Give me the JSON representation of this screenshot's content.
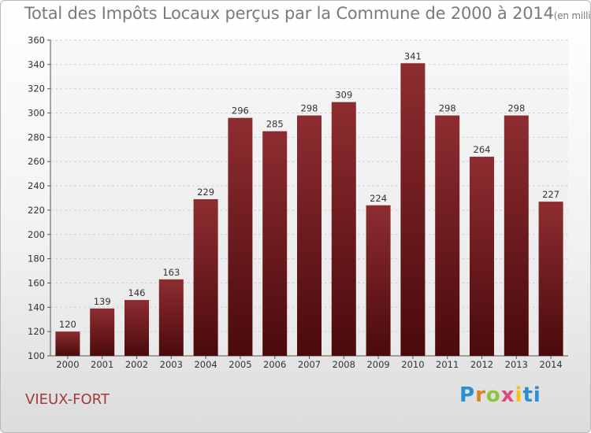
{
  "chart_data": {
    "type": "bar",
    "title": "Total des Impôts Locaux perçus par la Commune de 2000 à 2014",
    "unit_label": "(en milliers d'€)",
    "categories": [
      "2000",
      "2001",
      "2002",
      "2003",
      "2004",
      "2005",
      "2006",
      "2007",
      "2008",
      "2009",
      "2010",
      "2011",
      "2012",
      "2013",
      "2014"
    ],
    "values": [
      120,
      139,
      146,
      163,
      229,
      296,
      285,
      298,
      309,
      224,
      341,
      298,
      264,
      298,
      227
    ],
    "ylim": [
      100,
      360
    ],
    "yticks": [
      100,
      120,
      140,
      160,
      180,
      200,
      220,
      240,
      260,
      280,
      300,
      320,
      340,
      360
    ],
    "xlabel": "",
    "ylabel": "",
    "grid": true,
    "bar_color": "#7a1f24"
  },
  "commune": "VIEUX-FORT",
  "brand": {
    "letters": [
      "P",
      "r",
      "o",
      "x",
      "i",
      "ti"
    ]
  }
}
